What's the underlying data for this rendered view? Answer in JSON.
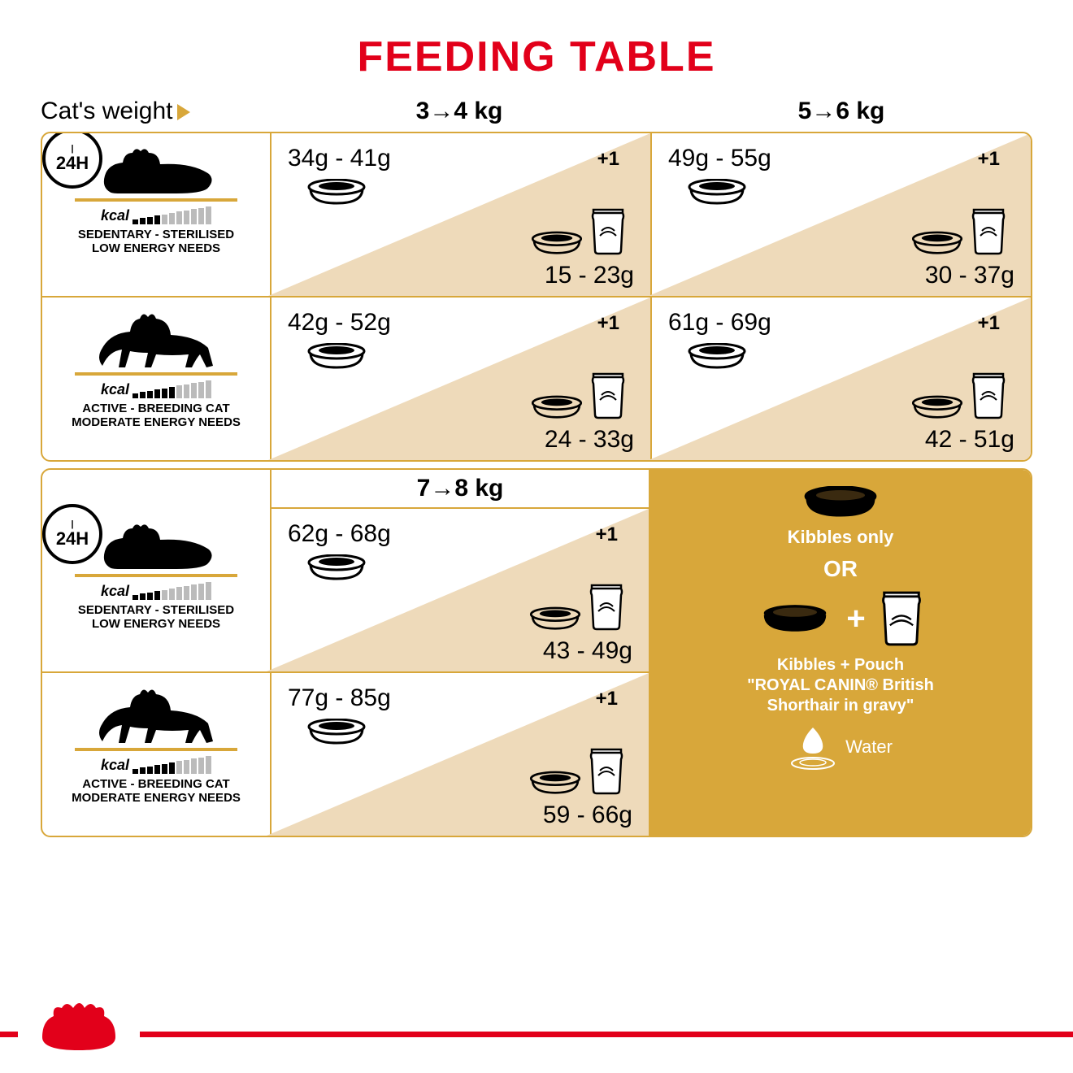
{
  "colors": {
    "accent": "#e2001a",
    "gold": "#d8a73a",
    "cream": "#eedaba"
  },
  "title": "FEEDING TABLE",
  "header": {
    "label": "Cat's weight",
    "cols": [
      "3→4 kg",
      "5→6 kg"
    ]
  },
  "header2": {
    "col": "7→8 kg"
  },
  "energy": {
    "sedentary": {
      "line1": "SEDENTARY - STERILISED",
      "line2": "LOW ENERGY NEEDS",
      "bars_on": 4,
      "bars_total": 11,
      "kcal": "kcal"
    },
    "active": {
      "line1": "ACTIVE - BREEDING CAT",
      "line2": "MODERATE ENERGY NEEDS",
      "bars_on": 6,
      "bars_total": 11,
      "kcal": "kcal"
    }
  },
  "badge": "24H",
  "plus1": "+1",
  "cells": {
    "r1c1": {
      "dry": "34g - 41g",
      "mix": "15 - 23g"
    },
    "r1c2": {
      "dry": "49g - 55g",
      "mix": "30 - 37g"
    },
    "r2c1": {
      "dry": "42g - 52g",
      "mix": "24 - 33g"
    },
    "r2c2": {
      "dry": "61g - 69g",
      "mix": "42 - 51g"
    },
    "r3c1": {
      "dry": "62g - 68g",
      "mix": "43 - 49g"
    },
    "r4c1": {
      "dry": "77g - 85g",
      "mix": "59 - 66g"
    }
  },
  "legend": {
    "kibbles": "Kibbles only",
    "or": "OR",
    "combo": "Kibbles + Pouch\n\"ROYAL CANIN® British\nShorthair in gravy\"",
    "water": "Water"
  }
}
